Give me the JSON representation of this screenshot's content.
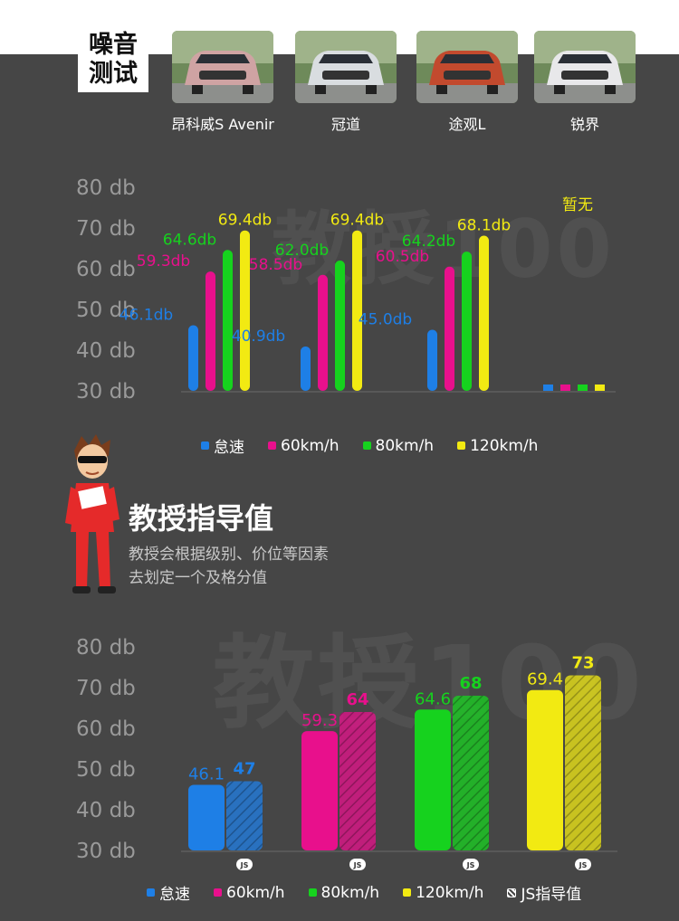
{
  "header": {
    "title_line1": "噪音",
    "title_line2": "测试"
  },
  "cars": [
    {
      "name": "昂科威S Avenir",
      "photo_bg": "#cfa3a3",
      "icon": "pink-suv-photo"
    },
    {
      "name": "冠道",
      "photo_bg": "#d9dde0",
      "icon": "white-suv-photo"
    },
    {
      "name": "途观L",
      "photo_bg": "#c24a2e",
      "icon": "red-suv-photo"
    },
    {
      "name": "锐界",
      "photo_bg": "#e8e8ea",
      "icon": "white-suv-photo"
    }
  ],
  "colors": {
    "idle": "#1e7fe6",
    "kmh60": "#e8108c",
    "kmh80": "#16d21e",
    "kmh120": "#f2ea12"
  },
  "legend_top": [
    {
      "label": "怠速",
      "color": "#1e7fe6"
    },
    {
      "label": "60km/h",
      "color": "#e8108c"
    },
    {
      "label": "80km/h",
      "color": "#16d21e"
    },
    {
      "label": "120km/h",
      "color": "#f2ea12"
    }
  ],
  "legend_bottom": [
    {
      "label": "怠速",
      "color": "#1e7fe6"
    },
    {
      "label": "60km/h",
      "color": "#e8108c"
    },
    {
      "label": "80km/h",
      "color": "#16d21e"
    },
    {
      "label": "120km/h",
      "color": "#f2ea12"
    },
    {
      "label": "JS指导值",
      "color": "hatch"
    }
  ],
  "guide": {
    "title": "教授指导值",
    "desc_line1": "教授会根据级别、价位等因素",
    "desc_line2": "去划定一个及格分值"
  },
  "watermark": "教授100",
  "chart_data": [
    {
      "type": "bar",
      "yticks": [
        "80 db",
        "70 db",
        "60 db",
        "50 db",
        "40 db",
        "30 db"
      ],
      "ylim": [
        30,
        80
      ],
      "categories": [
        "昂科威S Avenir",
        "冠道",
        "途观L",
        "锐界"
      ],
      "series": [
        {
          "name": "怠速",
          "values": [
            46.1,
            40.9,
            45.0,
            null
          ],
          "labels": [
            "46.1db",
            "40.9db",
            "45.0db",
            ""
          ]
        },
        {
          "name": "60km/h",
          "values": [
            59.3,
            58.5,
            60.5,
            null
          ],
          "labels": [
            "59.3db",
            "58.5db",
            "60.5db",
            ""
          ]
        },
        {
          "name": "80km/h",
          "values": [
            64.6,
            62.0,
            64.2,
            null
          ],
          "labels": [
            "64.6db",
            "62.0db",
            "64.2db",
            ""
          ]
        },
        {
          "name": "120km/h",
          "values": [
            69.4,
            69.4,
            68.1,
            null
          ],
          "labels": [
            "69.4db",
            "69.4db",
            "68.1db",
            ""
          ]
        }
      ],
      "missing_label": "暂无"
    },
    {
      "type": "bar",
      "yticks": [
        "80 db",
        "70 db",
        "60 db",
        "50 db",
        "40 db",
        "30 db"
      ],
      "ylim": [
        30,
        80
      ],
      "categories": [
        "怠速",
        "60km/h",
        "80km/h",
        "120km/h"
      ],
      "series": [
        {
          "name": "",
          "values": [
            46.1,
            59.3,
            64.6,
            69.4
          ],
          "labels": [
            "46.1",
            "59.3",
            "64.6",
            "69.4"
          ]
        },
        {
          "name": "JS指导值",
          "values": [
            47,
            64,
            68,
            73
          ],
          "labels": [
            "47",
            "64",
            "68",
            "73"
          ]
        }
      ],
      "js_badge": "JS"
    }
  ]
}
